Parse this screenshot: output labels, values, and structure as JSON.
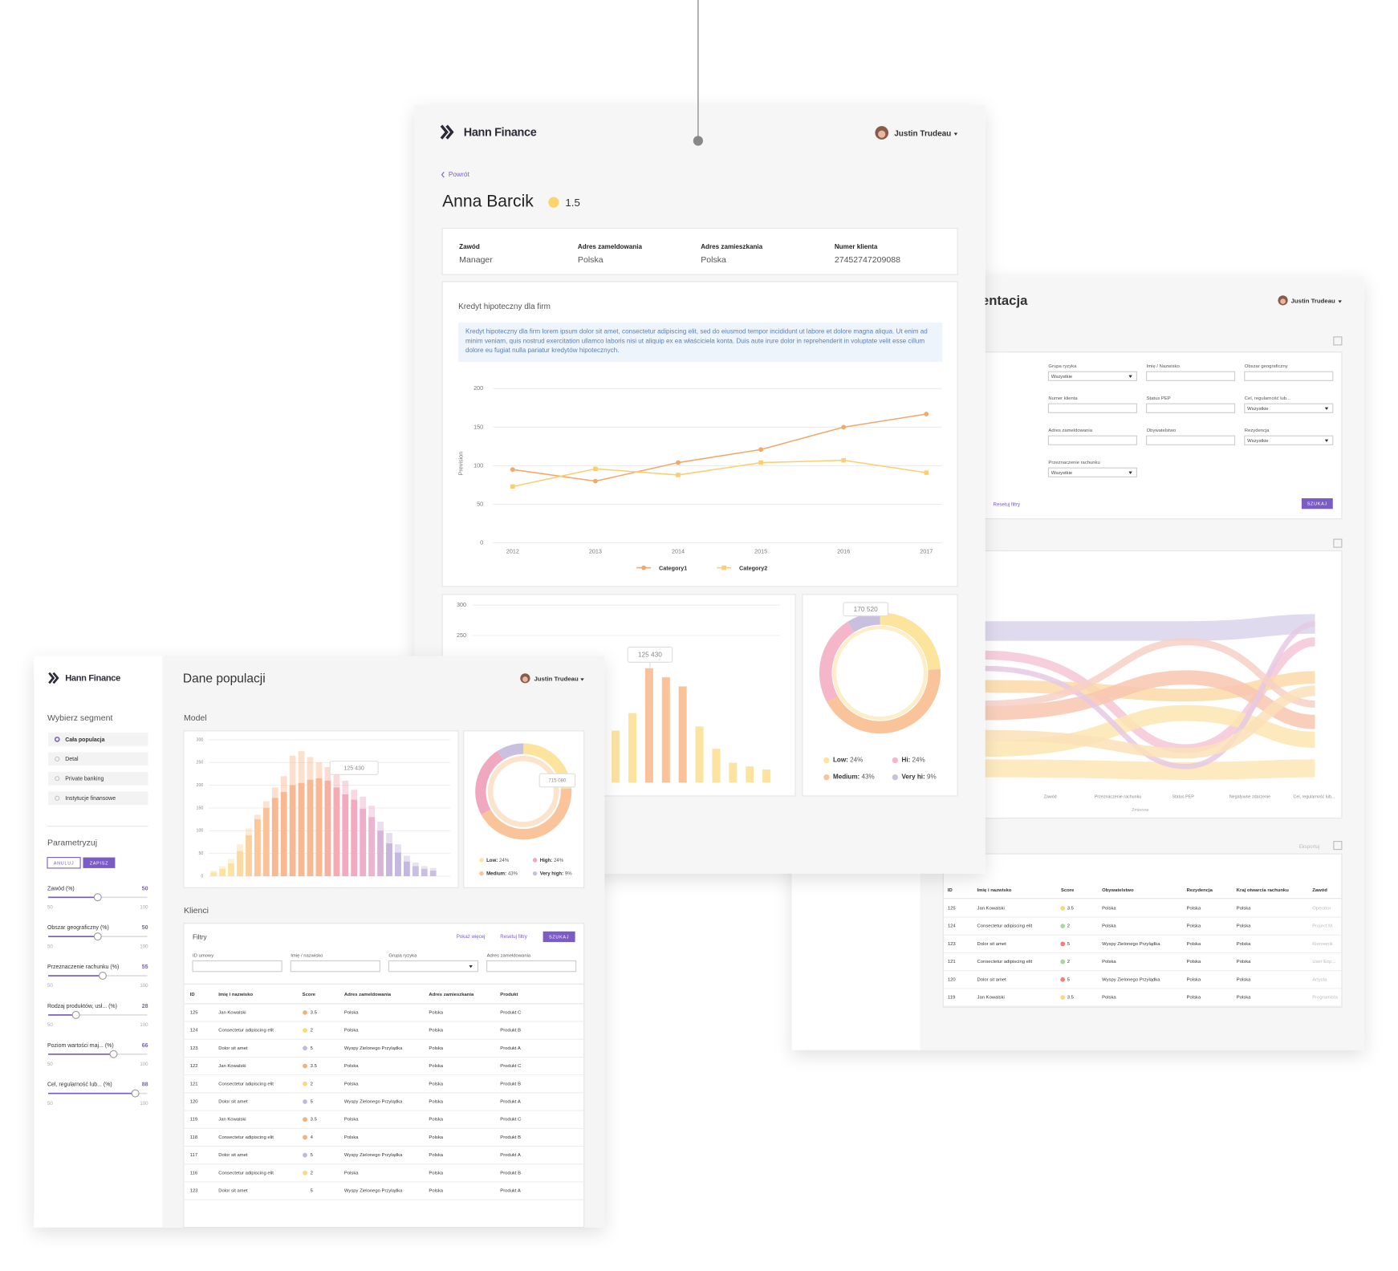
{
  "profile_window": {
    "brand": "Hann Finance",
    "user": "Justin Trudeau",
    "back": "Powrót",
    "name": "Anna Barcik",
    "score": "1.5",
    "fields": [
      {
        "label": "Zawód",
        "value": "Manager"
      },
      {
        "label": "Adres zameldowania",
        "value": "Polska"
      },
      {
        "label": "Adres zamieszkania",
        "value": "Polska"
      },
      {
        "label": "Numer klienta",
        "value": "27452747209088"
      }
    ],
    "card_title": "Kredyt hipoteczny dla firm",
    "description": "Kredyt hipoteczny dla firm lorem ipsum dolor sit amet, consectetur adipiscing elit, sed do eiusmod tempor incididunt ut labore et dolore magna aliqua. Ut enim ad minim veniam, quis nostrud exercitation ullamco laboris nisi ut aliquip ex ea właściciela konta. Duis aute irure dolor in reprehenderit in voluptate velit esse cillum dolore eu fugiat nulla pariatur kredytów hipotecznych.",
    "line_chart": {
      "type": "line",
      "ylabel": "Prevision",
      "x": [
        "2012",
        "2013",
        "2014",
        "2015",
        "2016",
        "2017"
      ],
      "ylim": [
        0,
        200
      ],
      "yticks": [
        0,
        50,
        100,
        150,
        200
      ],
      "grid": true,
      "series": [
        {
          "name": "Category1",
          "color": "#f2a86b",
          "values": [
            95,
            80,
            104,
            121,
            150,
            167
          ]
        },
        {
          "name": "Category2",
          "color": "#fbcf70",
          "values": [
            73,
            96,
            88,
            104,
            107,
            91
          ]
        }
      ]
    },
    "bar_chart": {
      "type": "bar",
      "ylim": [
        0,
        300
      ],
      "yticks": [
        250,
        300
      ],
      "annotation": "125 430",
      "values": [
        93,
        122,
        196,
        181,
        166,
        100,
        63,
        40,
        34,
        29
      ],
      "colors": [
        "#fde3a0",
        "#fde3a0",
        "#f9c29a",
        "#f9c29a",
        "#f9c29a",
        "#fde3a0",
        "#fde3a0",
        "#fde3a0",
        "#fde3a0",
        "#fde3a0"
      ]
    },
    "donut": {
      "type": "pie",
      "annotation": "170 520",
      "series": [
        {
          "name": "Low:",
          "color": "#fde49c",
          "values": [
            24
          ],
          "value_labels": [
            "24%"
          ]
        },
        {
          "name": "Medium:",
          "color": "#f9c49a",
          "values": [
            43
          ],
          "value_labels": [
            "43%"
          ]
        },
        {
          "name": "Hi:",
          "color": "#f4b6c8",
          "values": [
            24
          ],
          "value_labels": [
            "24%"
          ]
        },
        {
          "name": "Very hi:",
          "color": "#c9c0e0",
          "values": [
            9
          ],
          "value_labels": [
            "9%"
          ]
        }
      ]
    }
  },
  "population_window": {
    "brand": "Hann Finance",
    "title": "Dane populacji",
    "user": "Justin Trudeau",
    "segment_title": "Wybierz segment",
    "segments": [
      "Cała populacja",
      "Detal",
      "Private banking",
      "Instytucje finansowe"
    ],
    "params_title": "Parametryzuj",
    "cancel": "ANULUJ",
    "save": "ZAPISZ",
    "sliders": [
      {
        "label": "Zawód (%)",
        "value": 50,
        "min": "50",
        "max": "100"
      },
      {
        "label": "Obszar geograficzny (%)",
        "value": 50,
        "min": "50",
        "max": "100"
      },
      {
        "label": "Przeznaczenie rachunku (%)",
        "value": 55,
        "min": "50",
        "max": "100"
      },
      {
        "label": "Rodzaj produktów, usł... (%)",
        "value": 28,
        "min": "50",
        "max": "100"
      },
      {
        "label": "Poziom wartości maj... (%)",
        "value": 66,
        "min": "50",
        "max": "100"
      },
      {
        "label": "Cel, regularność lub... (%)",
        "value": 88,
        "min": "50",
        "max": "100"
      }
    ],
    "model_title": "Model",
    "model_chart": {
      "type": "bar",
      "ylim": [
        0,
        300
      ],
      "yticks": [
        0,
        50,
        100,
        150,
        200,
        250,
        300
      ],
      "grid": true,
      "annotation": "125 430",
      "back_values": [
        12,
        22,
        38,
        70,
        105,
        135,
        165,
        195,
        220,
        265,
        275,
        262,
        250,
        240,
        230,
        210,
        190,
        175,
        155,
        120,
        95,
        70,
        45,
        30,
        22,
        18
      ],
      "values": [
        8,
        16,
        28,
        55,
        90,
        125,
        150,
        172,
        185,
        200,
        205,
        212,
        215,
        210,
        195,
        180,
        168,
        148,
        130,
        100,
        72,
        52,
        32,
        22,
        16,
        12
      ],
      "colors": [
        "#fde3a0",
        "#fde3a0",
        "#fde3a0",
        "#fdd9a0",
        "#fcd09c",
        "#fbc69a",
        "#f9c29a",
        "#f8b891",
        "#f8b891",
        "#f8b891",
        "#f8b891",
        "#f8b891",
        "#f8b891",
        "#f6b0a0",
        "#f5aab4",
        "#f3a9bf",
        "#f3a9bf",
        "#efadc9",
        "#ebb4cf",
        "#d8b5d8",
        "#c7b5dc",
        "#c3b8e0",
        "#c3b8e0",
        "#c9c0e0",
        "#c9c0e0",
        "#c9c0e0"
      ]
    },
    "donut": {
      "type": "pie",
      "annotation": "715 080",
      "series": [
        {
          "name": "Low:",
          "color": "#fde49c",
          "values": [
            24
          ],
          "value_labels": [
            "24%"
          ]
        },
        {
          "name": "Medium:",
          "color": "#f9c49a",
          "values": [
            43
          ],
          "value_labels": [
            "43%"
          ]
        },
        {
          "name": "High:",
          "color": "#f0a8c0",
          "values": [
            24
          ],
          "value_labels": [
            "24%"
          ]
        },
        {
          "name": "Very high:",
          "color": "#c9c0e0",
          "values": [
            9
          ],
          "value_labels": [
            "9%"
          ]
        }
      ]
    },
    "clients_title": "Klienci",
    "filters_title": "Filtry",
    "show_more": "Pokaż więcej",
    "reset": "Resetuj filtry",
    "search": "SZUKAJ",
    "filters": [
      "ID umowy",
      "Imię / nazwisko",
      "Grupa ryzyka",
      "Adres zameldowania"
    ],
    "table": {
      "headers": [
        "ID",
        "Imię i nazwisko",
        "Score",
        "Adres zameldowania",
        "Adres zamieszkania",
        "Produkt"
      ],
      "rows": [
        [
          "125",
          "Jan Kowalski",
          "3.5",
          "Polska",
          "Polska",
          "Produkt C"
        ],
        [
          "124",
          "Consectetur adipiscing elit",
          "2",
          "Polska",
          "Polska",
          "Produkt B"
        ],
        [
          "123",
          "Dolor sit amet",
          "5",
          "Wyspy Zielonego Przylądka",
          "Polska",
          "Produkt A"
        ],
        [
          "122",
          "Jan Kowalski",
          "3.5",
          "Polska",
          "Polska",
          "Produkt C"
        ],
        [
          "121",
          "Consectetur adipiscing elit",
          "2",
          "Polska",
          "Polska",
          "Produkt B"
        ],
        [
          "120",
          "Dolor sit amet",
          "5",
          "Wyspy Zielonego Przylądka",
          "Polska",
          "Produkt A"
        ],
        [
          "119",
          "Jan Kowalski",
          "3.5",
          "Polska",
          "Polska",
          "Produkt C"
        ],
        [
          "118",
          "Consectetur adipiscing elit",
          "4",
          "Polska",
          "Polska",
          "Produkt B"
        ],
        [
          "117",
          "Dolor sit amet",
          "5",
          "Wyspy Zielonego Przylądka",
          "Polska",
          "Produkt A"
        ],
        [
          "116",
          "Consectetur adipiscing elit",
          "2",
          "Polska",
          "Polska",
          "Produkt B"
        ],
        [
          "123",
          "Dolor sit amet",
          "5",
          "Wyspy Zielonego Przylądka",
          "Polska",
          "Produkt A"
        ]
      ],
      "score_colors": [
        "#f5b07a",
        "#fcd77f",
        "#c3b8e0",
        "#f5b07a",
        "#fcd77f",
        "#c3b8e0",
        "#f5b07a",
        "#f5b07a",
        "#c3b8e0",
        "#fcd77f",
        null
      ]
    }
  },
  "segmentation_window": {
    "title": "Segmentacja",
    "user": "Justin Trudeau",
    "filters": [
      {
        "label": "Grupa ryzyka",
        "value": "Wszystkie"
      },
      {
        "label": "Imię / Nazwisko"
      },
      {
        "label": "Obszar geograficzny"
      },
      {
        "label": "Numer klienta"
      },
      {
        "label": "Status PEP"
      },
      {
        "label": "Cel, regularność lub...",
        "value": "Wszystkie"
      },
      {
        "label": "Adres zameldowania"
      },
      {
        "label": "Obywatelstwo"
      },
      {
        "label": "Rezydencja",
        "value": "Wszystkie"
      },
      {
        "label": "Przeznaczenie rachunku",
        "value": "Wszystkie"
      }
    ],
    "reset": "Resetuj filtry",
    "search": "SZUKAJ",
    "sankey_axis": [
      "Zawód",
      "Przeznaczenie rachunku",
      "Status PEP",
      "Negatywne zdarzenie",
      "Cel, regularność lub..."
    ],
    "sankey_xlabel": "Zmienne",
    "export": "Eksportuj",
    "table": {
      "headers": [
        "ID",
        "Imię i nazwisko",
        "Score",
        "Obywatelstwo",
        "Rezydencja",
        "Kraj otwarcia rachunku",
        "Zawód"
      ],
      "rows": [
        [
          "125",
          "Jan Kowalski",
          "3.5",
          "Polska",
          "Polska",
          "Polska",
          "Operator"
        ],
        [
          "124",
          "Consectetur adipiscing elit",
          "2",
          "Polska",
          "Polska",
          "Polska",
          "Project M..."
        ],
        [
          "123",
          "Dolor sit amet",
          "5",
          "Wyspy Zielonego Przylądka",
          "Polska",
          "Polska",
          "Kierownik"
        ],
        [
          "121",
          "Consectetur adipiscing elit",
          "2",
          "Polska",
          "Polska",
          "Polska",
          "User Exp..."
        ],
        [
          "120",
          "Dolor sit amet",
          "5",
          "Wyspy Zielonego Przylądka",
          "Polska",
          "Polska",
          "Artysta"
        ],
        [
          "119",
          "Jan Kowalski",
          "3.5",
          "Polska",
          "Polska",
          "Polska",
          "Programista"
        ]
      ],
      "score_colors": [
        "#fcd77f",
        "#a8d8a0",
        "#f08080",
        "#a8d8a0",
        "#f08080",
        "#fcd77f"
      ]
    }
  }
}
